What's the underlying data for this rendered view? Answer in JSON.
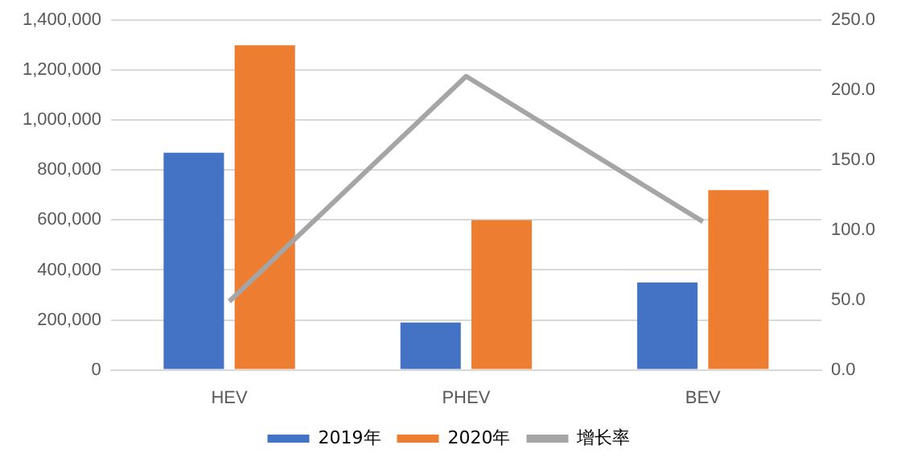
{
  "chart_data": {
    "type": "bar",
    "categories": [
      "HEV",
      "PHEV",
      "BEV"
    ],
    "series": [
      {
        "name": "2019年",
        "color": "#4472c4",
        "values": [
          870000,
          190000,
          350000
        ]
      },
      {
        "name": "2020年",
        "color": "#ed7d31",
        "values": [
          1300000,
          600000,
          720000
        ]
      },
      {
        "name": "增长率",
        "type": "line",
        "axis": "y2",
        "color": "#a5a5a5",
        "values": [
          49,
          210,
          106
        ]
      }
    ],
    "ylim": [
      0,
      1400000
    ],
    "yticks": [
      {
        "value": 0,
        "label": "0"
      },
      {
        "value": 200000,
        "label": "200,000"
      },
      {
        "value": 400000,
        "label": "400,000"
      },
      {
        "value": 600000,
        "label": "600,000"
      },
      {
        "value": 800000,
        "label": "800,000"
      },
      {
        "value": 1000000,
        "label": "1,000,000"
      },
      {
        "value": 1200000,
        "label": "1,200,000"
      },
      {
        "value": 1400000,
        "label": "1,400,000"
      }
    ],
    "y2lim": [
      0,
      250
    ],
    "y2ticks": [
      {
        "value": 0,
        "label": "0.0"
      },
      {
        "value": 50,
        "label": "50.0"
      },
      {
        "value": 100,
        "label": "100.0"
      },
      {
        "value": 150,
        "label": "150.0"
      },
      {
        "value": 200,
        "label": "200.0"
      },
      {
        "value": 250,
        "label": "250.0"
      }
    ],
    "grid": "y",
    "legend": "bottom",
    "marker": "none",
    "line_style": "solid"
  }
}
